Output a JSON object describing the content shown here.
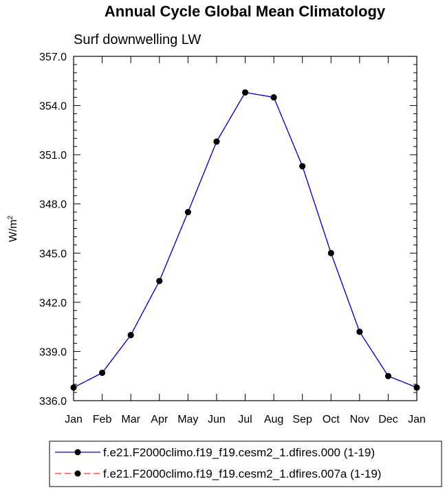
{
  "chart_data": {
    "type": "line",
    "title": "Annual Cycle Global Mean Climatology",
    "subtitle": "Surf downwelling LW",
    "xlabel": "",
    "ylabel_main": "W/m",
    "ylabel_sup": "2",
    "categories": [
      "Jan",
      "Feb",
      "Mar",
      "Apr",
      "May",
      "Jun",
      "Jul",
      "Aug",
      "Sep",
      "Oct",
      "Nov",
      "Dec",
      "Jan"
    ],
    "yticks": [
      "336.0",
      "339.0",
      "342.0",
      "345.0",
      "348.0",
      "351.0",
      "354.0",
      "357.0"
    ],
    "ylim": [
      336.0,
      357.0
    ],
    "grid": false,
    "legend_placement": "bottom",
    "series": [
      {
        "name": "f.e21.F2000climo.f19_f19.cesm2_1.dfires.000 (1-19)",
        "color": "#0000cc",
        "dash": "solid",
        "values": [
          336.8,
          337.7,
          340.0,
          343.3,
          347.5,
          351.8,
          354.8,
          354.5,
          350.3,
          345.0,
          340.2,
          337.5,
          336.8
        ]
      },
      {
        "name": "f.e21.F2000climo.f19_f19.cesm2_1.dfires.007a (1-19)",
        "color": "#ff3333",
        "dash": "dashed",
        "values": [
          336.8,
          337.7,
          340.0,
          343.3,
          347.5,
          351.8,
          354.8,
          354.5,
          350.3,
          345.0,
          340.2,
          337.5,
          336.8
        ]
      }
    ]
  }
}
